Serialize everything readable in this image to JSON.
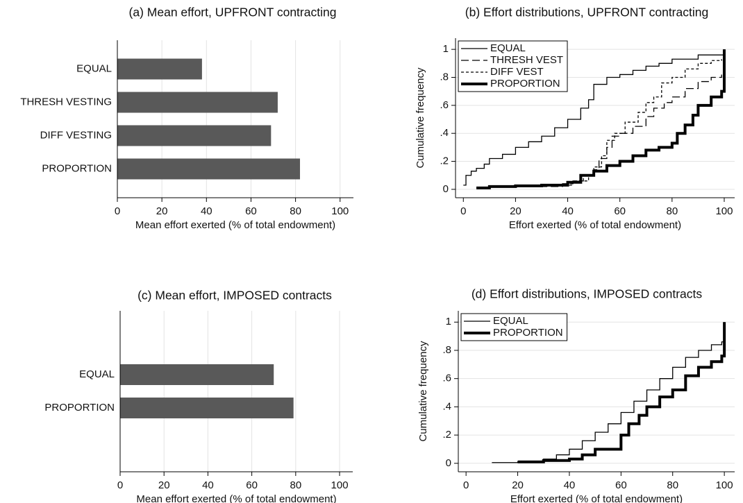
{
  "chart_data": [
    {
      "type": "bar",
      "orientation": "horizontal",
      "title": "(a) Mean effort, UPFRONT contracting",
      "categories": [
        "EQUAL",
        "THRESH VESTING",
        "DIFF VESTING",
        "PROPORTION"
      ],
      "values": [
        38,
        72,
        69,
        82
      ],
      "color": "#595959",
      "xlim": [
        0,
        106
      ],
      "xticks": [
        0,
        20,
        40,
        60,
        80,
        100
      ],
      "grid": true,
      "xlabel": "Mean effort exerted (% of total endowment)"
    },
    {
      "type": "line",
      "title": "(b) Effort distributions, UPFRONT contracting",
      "xlabel": "Effort exerted (% of total endowment)",
      "ylabel": "Cumulative frequency",
      "xlim": [
        -3,
        104
      ],
      "ylim": [
        -0.06,
        1.08
      ],
      "xticks": [
        0,
        20,
        40,
        60,
        80,
        100
      ],
      "yticks": [
        0,
        {
          "value": 0.2,
          "label": ".2"
        },
        {
          "value": 0.4,
          "label": ".4"
        },
        {
          "value": 0.6,
          "label": ".6"
        },
        {
          "value": 0.8,
          "label": ".8"
        },
        1
      ],
      "grid": true,
      "legend": "top-left",
      "series": [
        {
          "name": "EQUAL",
          "color": "#000000",
          "line_style": "solid",
          "x": [
            0,
            1,
            3,
            5,
            8,
            10,
            15,
            20,
            25,
            30,
            35,
            40,
            45,
            48,
            50,
            55,
            60,
            65,
            70,
            75,
            80,
            90,
            100
          ],
          "values": [
            0.03,
            0.1,
            0.13,
            0.15,
            0.18,
            0.22,
            0.25,
            0.3,
            0.34,
            0.38,
            0.44,
            0.5,
            0.58,
            0.64,
            0.75,
            0.8,
            0.82,
            0.85,
            0.88,
            0.9,
            0.93,
            0.96,
            1
          ]
        },
        {
          "name": "THRESH VEST",
          "color": "#000000",
          "line_style": "long-dash",
          "x": [
            25,
            38,
            42,
            46,
            50,
            52,
            55,
            57,
            60,
            65,
            70,
            73,
            77,
            80,
            85,
            90,
            95,
            99
          ],
          "values": [
            0.02,
            0.04,
            0.06,
            0.1,
            0.14,
            0.22,
            0.3,
            0.38,
            0.4,
            0.45,
            0.52,
            0.58,
            0.62,
            0.66,
            0.72,
            0.77,
            0.8,
            0.82
          ]
        },
        {
          "name": "DIFF VEST",
          "color": "#000000",
          "line_style": "short-dash",
          "x": [
            35,
            42,
            48,
            50,
            53,
            55,
            58,
            62,
            67,
            70,
            73,
            76,
            80,
            85,
            90,
            95,
            99
          ],
          "values": [
            0.03,
            0.06,
            0.1,
            0.16,
            0.24,
            0.35,
            0.4,
            0.48,
            0.55,
            0.62,
            0.66,
            0.76,
            0.8,
            0.86,
            0.9,
            0.92,
            0.93
          ]
        },
        {
          "name": "PROPORTION",
          "color": "#000000",
          "line_style": "thick",
          "x": [
            5,
            10,
            20,
            30,
            40,
            45,
            50,
            55,
            60,
            65,
            70,
            75,
            80,
            82,
            85,
            88,
            90,
            95,
            99,
            100
          ],
          "values": [
            0.01,
            0.02,
            0.025,
            0.03,
            0.05,
            0.1,
            0.13,
            0.17,
            0.2,
            0.24,
            0.28,
            0.3,
            0.33,
            0.4,
            0.46,
            0.53,
            0.6,
            0.66,
            0.7,
            1
          ]
        }
      ]
    },
    {
      "type": "bar",
      "orientation": "horizontal",
      "title": "(c) Mean effort, IMPOSED contracts",
      "categories": [
        "EQUAL",
        "PROPORTION"
      ],
      "values": [
        70,
        79
      ],
      "color": "#595959",
      "xlim": [
        0,
        106
      ],
      "xticks": [
        0,
        20,
        40,
        60,
        80,
        100
      ],
      "grid": true,
      "xlabel": "Mean effort exerted (% of total endowment)"
    },
    {
      "type": "line",
      "title": "(d) Effort distributions, IMPOSED contracts",
      "xlabel": "Effort exerted (% of total endowment)",
      "ylabel": "Cumulative frequency",
      "xlim": [
        -3,
        104
      ],
      "ylim": [
        -0.06,
        1.08
      ],
      "xticks": [
        0,
        20,
        40,
        60,
        80,
        100
      ],
      "yticks": [
        0,
        {
          "value": 0.2,
          "label": ".2"
        },
        {
          "value": 0.4,
          "label": ".4"
        },
        {
          "value": 0.6,
          "label": ".6"
        },
        {
          "value": 0.8,
          "label": ".8"
        },
        1
      ],
      "grid": true,
      "legend": "top-left",
      "series": [
        {
          "name": "EQUAL",
          "color": "#000000",
          "line_style": "solid",
          "x": [
            10,
            20,
            30,
            35,
            40,
            45,
            50,
            55,
            60,
            65,
            70,
            75,
            80,
            85,
            90,
            95,
            99,
            100
          ],
          "values": [
            0.005,
            0.01,
            0.03,
            0.06,
            0.1,
            0.16,
            0.22,
            0.28,
            0.36,
            0.44,
            0.52,
            0.6,
            0.68,
            0.75,
            0.8,
            0.84,
            0.86,
            1
          ]
        },
        {
          "name": "PROPORTION",
          "color": "#000000",
          "line_style": "thick",
          "x": [
            20,
            30,
            40,
            45,
            50,
            60,
            63,
            67,
            70,
            75,
            80,
            85,
            90,
            95,
            99,
            100
          ],
          "values": [
            0.01,
            0.02,
            0.03,
            0.06,
            0.1,
            0.2,
            0.28,
            0.34,
            0.4,
            0.47,
            0.52,
            0.62,
            0.68,
            0.72,
            0.76,
            1
          ]
        }
      ]
    }
  ]
}
